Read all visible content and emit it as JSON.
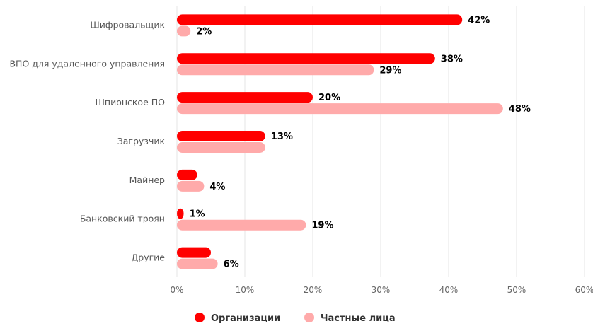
{
  "chart_data": {
    "type": "bar",
    "orientation": "horizontal",
    "title": "",
    "categories": [
      "Шифровальщик",
      "ВПО для удаленного управления",
      "Шпионское ПО",
      "Загрузчик",
      "Майнер",
      "Банковский троян",
      "Другие"
    ],
    "series": [
      {
        "name": "Организации",
        "color": "#ff0000",
        "values": [
          42,
          38,
          20,
          13,
          3,
          1,
          5
        ],
        "labels": [
          "42%",
          "38%",
          "20%",
          "13%",
          "",
          "1%",
          ""
        ]
      },
      {
        "name": "Частные лица",
        "color": "#ffaaaa",
        "values": [
          2,
          29,
          48,
          13,
          4,
          19,
          6
        ],
        "labels": [
          "2%",
          "29%",
          "48%",
          "",
          "4%",
          "19%",
          "6%"
        ]
      }
    ],
    "xlim": [
      0,
      60
    ],
    "xticks": [
      "0%",
      "10%",
      "20%",
      "30%",
      "40%",
      "50%",
      "60%"
    ],
    "grid": true,
    "legend": "bottom-center"
  }
}
